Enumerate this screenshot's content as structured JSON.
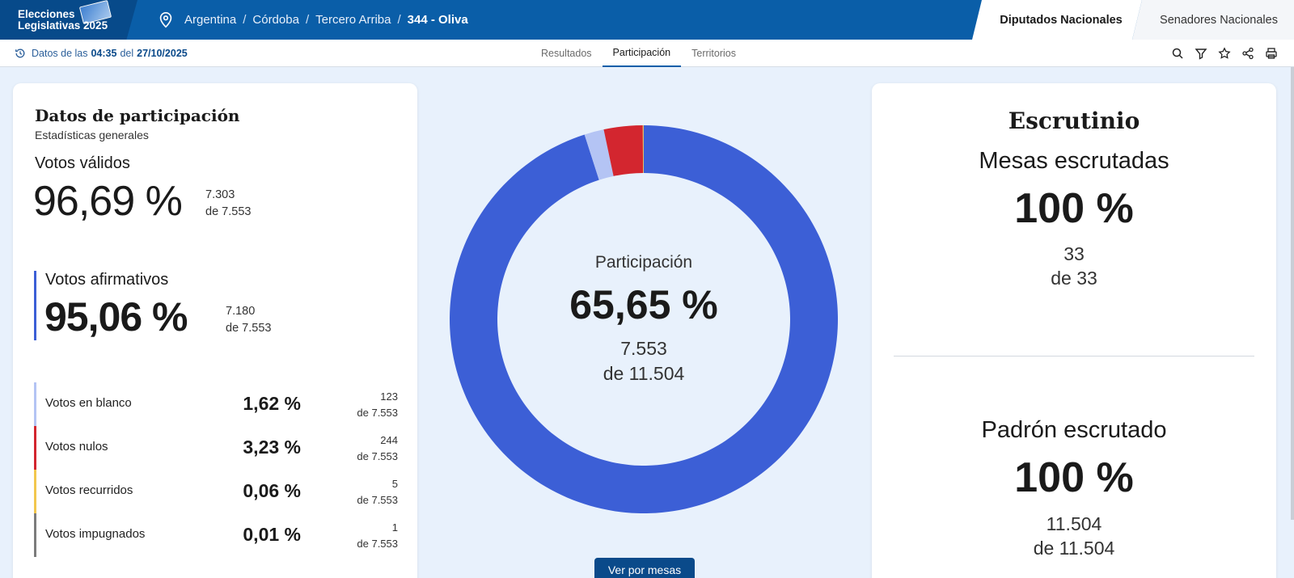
{
  "header": {
    "logo_line1": "Elecciones",
    "logo_line2": "Legislativas 2025",
    "breadcrumb": [
      "Argentina",
      "Córdoba",
      "Tercero Arriba"
    ],
    "breadcrumb_current": "344 - Oliva",
    "chamber_active": "Diputados Nacionales",
    "chamber_inactive": "Senadores Nacionales"
  },
  "subbar": {
    "updated_prefix": "Datos de las",
    "updated_time": "04:35",
    "updated_mid": "del",
    "updated_date": "27/10/2025",
    "tabs": [
      "Resultados",
      "Participación",
      "Territorios"
    ],
    "active_tab": "Participación"
  },
  "participation": {
    "title": "Datos de participación",
    "subtitle": "Estadísticas generales",
    "valid_label": "Votos válidos",
    "valid_pct": "96,69 %",
    "valid_count": "7.303",
    "valid_total": "de 7.553",
    "affirmative_label": "Votos afirmativos",
    "affirmative_pct": "95,06 %",
    "affirmative_count": "7.180",
    "affirmative_total": "de 7.553",
    "rows": [
      {
        "label": "Votos en blanco",
        "pct": "1,62 %",
        "count": "123",
        "total": "de 7.553",
        "color": "#b4c4f4"
      },
      {
        "label": "Votos nulos",
        "pct": "3,23 %",
        "count": "244",
        "total": "de 7.553",
        "color": "#d3262f"
      },
      {
        "label": "Votos recurridos",
        "pct": "0,06 %",
        "count": "5",
        "total": "de 7.553",
        "color": "#f2c74e"
      },
      {
        "label": "Votos impugnados",
        "pct": "0,01 %",
        "count": "1",
        "total": "de 7.553",
        "color": "#7c7c7c"
      }
    ]
  },
  "chart_data": {
    "type": "pie",
    "categories": [
      "Votos afirmativos",
      "Votos en blanco",
      "Votos nulos",
      "Votos recurridos",
      "Votos impugnados"
    ],
    "values": [
      7180,
      123,
      244,
      5,
      1
    ],
    "colors": [
      "#3c5fd6",
      "#b4c4f4",
      "#d3262f",
      "#f2c74e",
      "#7c7c7c"
    ],
    "center_label": "Participación",
    "center_pct": "65,65 %",
    "center_count": "7.553",
    "center_total": "de 11.504"
  },
  "button": {
    "ver_por_mesas": "Ver por mesas"
  },
  "scrutiny": {
    "title": "Escrutinio",
    "mesas_label": "Mesas escrutadas",
    "mesas_pct": "100 %",
    "mesas_count": "33",
    "mesas_total": "de 33",
    "padron_label": "Padrón escrutado",
    "padron_pct": "100 %",
    "padron_count": "11.504",
    "padron_total": "de 11.504"
  }
}
